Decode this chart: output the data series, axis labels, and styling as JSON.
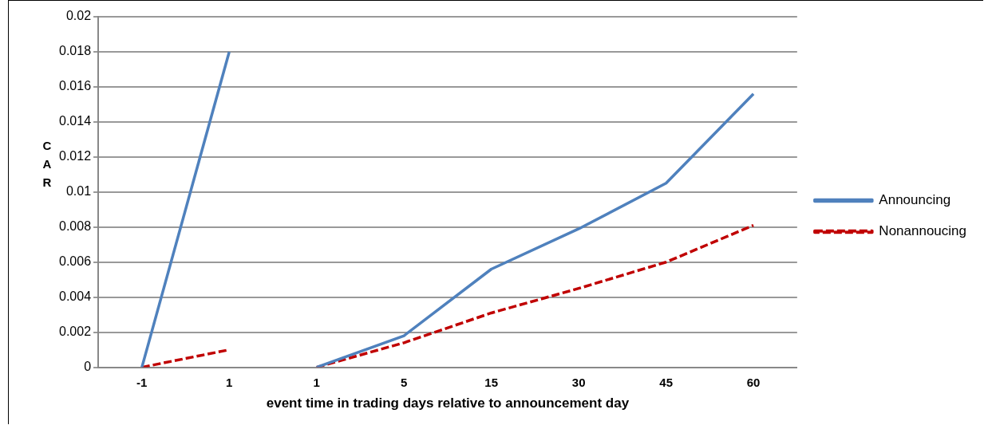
{
  "chart_data": {
    "type": "line",
    "xlabel": "event time in trading days relative to announcement day",
    "ylabel": "CAR",
    "categories": [
      "-1",
      "1",
      "1",
      "5",
      "15",
      "30",
      "45",
      "60"
    ],
    "series": [
      {
        "name": "Announcing",
        "color": "#4f81bd",
        "values": [
          0,
          0.018,
          null,
          null,
          null,
          null,
          null,
          null
        ],
        "line_style": "solid"
      },
      {
        "name": "Nonannoucing",
        "color": "#c00000",
        "values": [
          0,
          0.001,
          null,
          null,
          null,
          null,
          null,
          null
        ],
        "line_style": "dashed"
      },
      {
        "color": "#4f81bd",
        "values": [
          null,
          null,
          0,
          0.0018,
          0.0056,
          0.0079,
          0.0105,
          0.0156
        ],
        "line_style": "solid"
      },
      {
        "color": "#c00000",
        "values": [
          null,
          null,
          0,
          0.0014,
          0.0031,
          0.0045,
          0.006,
          0.0081
        ],
        "line_style": "dashed"
      }
    ],
    "ylim": [
      0,
      0.02
    ],
    "yticks": [
      0,
      0.002,
      0.004,
      0.006,
      0.008,
      0.01,
      0.012,
      0.014,
      0.016,
      0.018,
      0.02
    ],
    "grid": "y",
    "legend": "right",
    "marker": "none"
  }
}
